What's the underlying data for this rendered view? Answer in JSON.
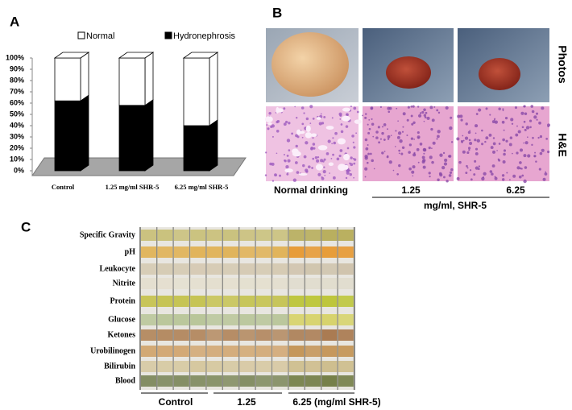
{
  "panel_labels": [
    "A",
    "B",
    "C"
  ],
  "chart_data": {
    "type": "bar",
    "stacked": true,
    "categories": [
      "Control",
      "1.25 mg/ml SHR-5",
      "6.25 mg/ml SHR-5"
    ],
    "series": [
      {
        "name": "Normal",
        "color": "#ffffff",
        "values": [
          38,
          42,
          60
        ]
      },
      {
        "name": "Hydronephrosis",
        "color": "#000000",
        "values": [
          62,
          58,
          40
        ]
      }
    ],
    "ylim": [
      0,
      100
    ],
    "yticks": [
      {
        "value": 0,
        "label": "0%"
      },
      {
        "value": 10,
        "label": "10%"
      },
      {
        "value": 20,
        "label": "20%"
      },
      {
        "value": 30,
        "label": "30%"
      },
      {
        "value": 40,
        "label": "40%"
      },
      {
        "value": 50,
        "label": "50%"
      },
      {
        "value": 60,
        "label": "60%"
      },
      {
        "value": 70,
        "label": "70%"
      },
      {
        "value": 80,
        "label": "80%"
      },
      {
        "value": 90,
        "label": "90%"
      },
      {
        "value": 100,
        "label": "100%"
      }
    ],
    "grid": false
  },
  "panel_b": {
    "row_labels": [
      "Photos",
      "H&E"
    ],
    "column_labels": [
      "Normal drinking",
      "1.25",
      "6.25"
    ],
    "unit": "mg/ml, SHR-5"
  },
  "panel_c": {
    "row_labels": [
      "Specific Gravity",
      "pH",
      "Leukocyte",
      "Nitrite",
      "Protein",
      "Glucose",
      "Ketones",
      "Urobilinogen",
      "Bilirubin",
      "Blood"
    ],
    "group_labels": [
      "Control",
      "1.25",
      "6.25 (mg/ml SHR-5)"
    ]
  }
}
